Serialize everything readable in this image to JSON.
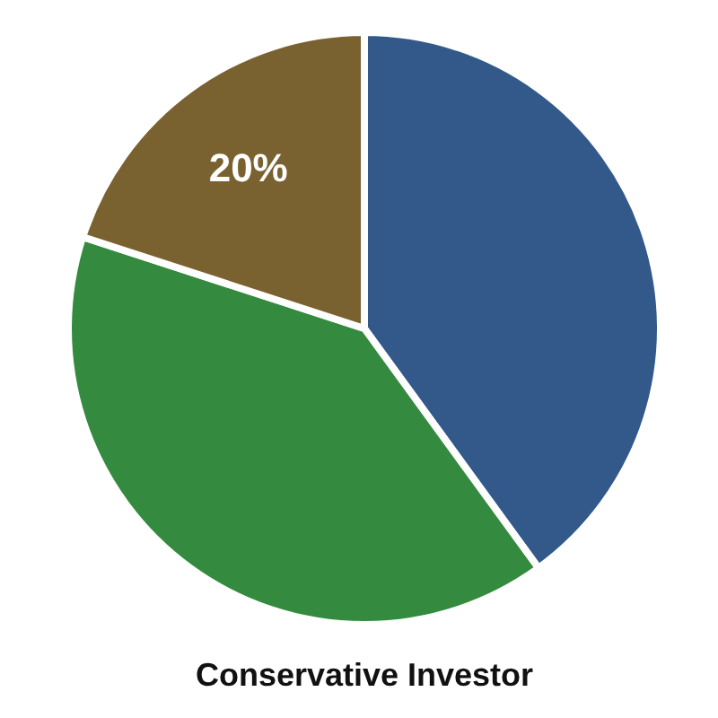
{
  "chart_data": {
    "type": "pie",
    "title": "Conservative Investor",
    "categories": [
      null,
      null,
      null
    ],
    "values": [
      40,
      40,
      20
    ],
    "colors": [
      "#33598a",
      "#348a3e",
      "#7a6130"
    ],
    "value_labels": [
      null,
      null,
      "20%"
    ],
    "legend": false
  }
}
